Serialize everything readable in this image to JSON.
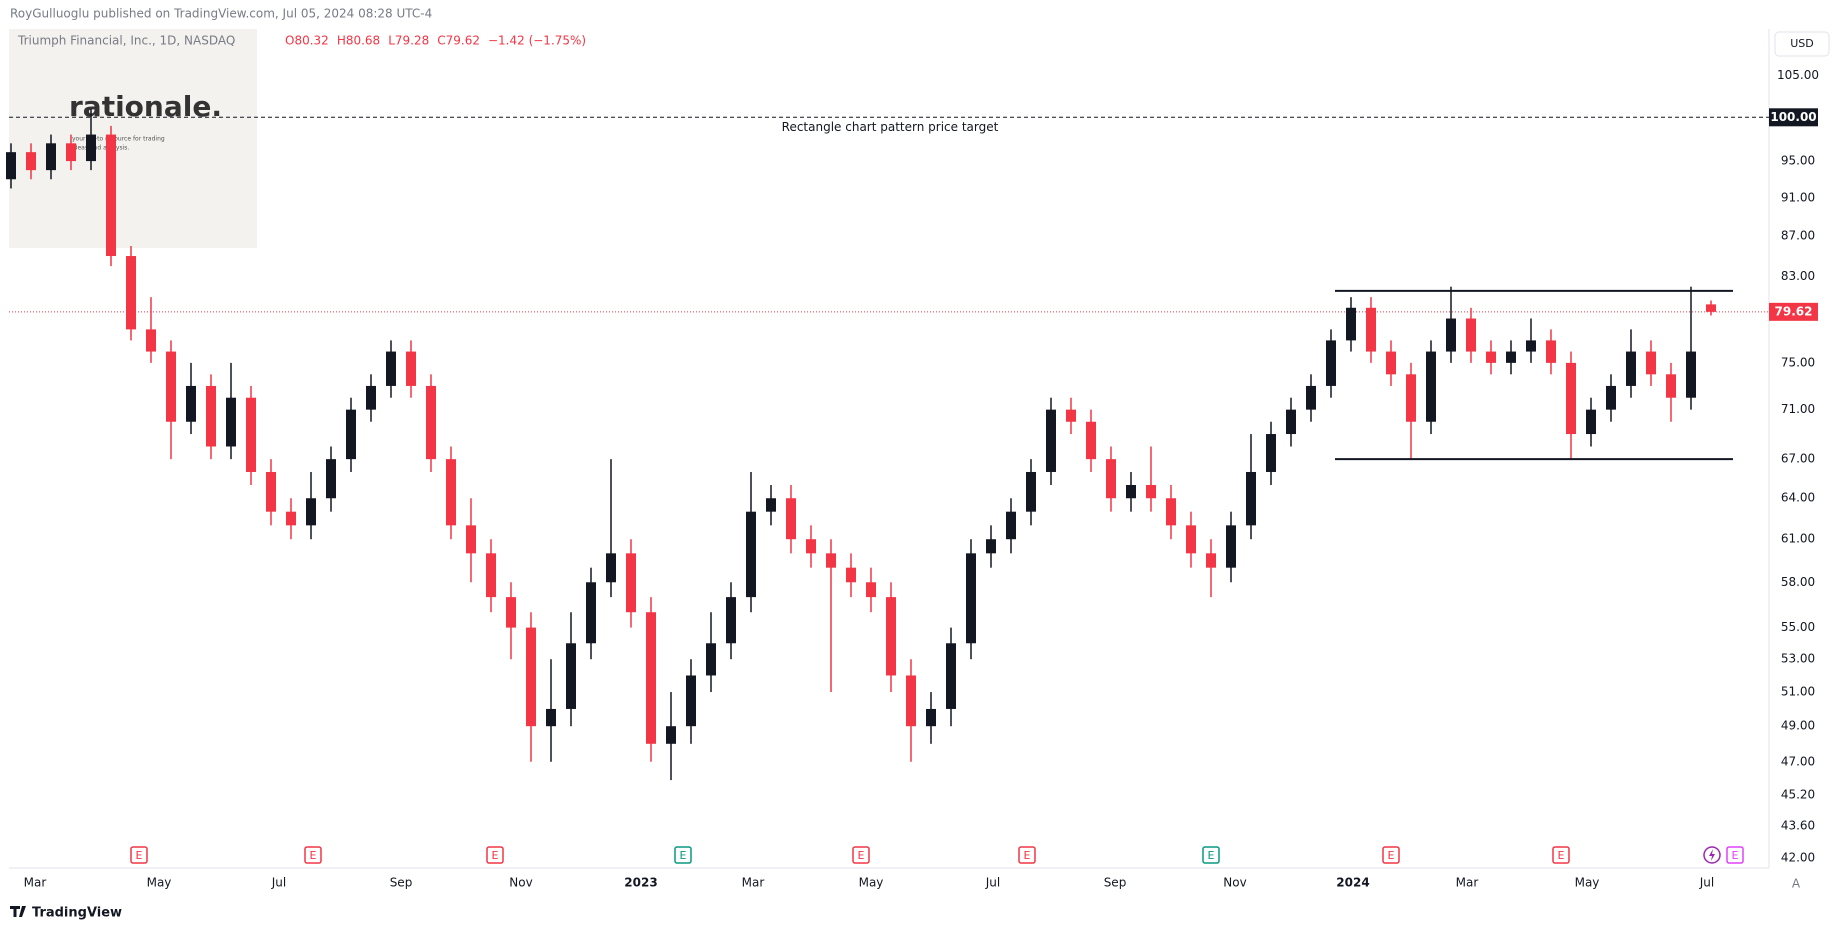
{
  "header": {
    "publisher": "RoyGulluoglu published on TradingView.com,  Jul 05, 2024 08:28 UTC-4",
    "symbol": "Triumph Financial, Inc., 1D, NASDAQ",
    "ohlc": [
      "O80.32",
      "H80.68",
      "L79.28",
      "C79.62"
    ],
    "change": "−1.42 (−1.75%)",
    "currency": "USD"
  },
  "watermark": {
    "brand": "rationale.",
    "tagline": [
      "your go-to resource for trading",
      "ideas and analysis."
    ]
  },
  "footer": {
    "brand": "TradingView",
    "auto": "A"
  },
  "chart_data": {
    "type": "candlestick",
    "log_scale": true,
    "grid": false,
    "up_color": "#131722",
    "down_color": "#f23645",
    "open": [
      93,
      96,
      94,
      97,
      95,
      98,
      85,
      78,
      76,
      70,
      73,
      68,
      72,
      66,
      63,
      62,
      64,
      67,
      71,
      73,
      76,
      73,
      67,
      62,
      60,
      57,
      55,
      49,
      50,
      54,
      58,
      60,
      56,
      48,
      49,
      52,
      54,
      57,
      63,
      64,
      61,
      60,
      59,
      58,
      57,
      52,
      49,
      50,
      54,
      60,
      61,
      63,
      66,
      71,
      70,
      67,
      64,
      65,
      64,
      62,
      60,
      59,
      62,
      66,
      69,
      71,
      73,
      77,
      80,
      76,
      74,
      70,
      76,
      79,
      76,
      75,
      76,
      77,
      75,
      69,
      71,
      73,
      76,
      74,
      72,
      80.32
    ],
    "high": [
      97,
      97,
      98,
      98,
      101,
      99,
      86,
      81,
      77,
      75,
      74,
      75,
      73,
      67,
      64,
      66,
      68,
      72,
      74,
      77,
      77,
      74,
      68,
      64,
      61,
      58,
      56,
      53,
      56,
      59,
      67,
      61,
      57,
      51,
      53,
      56,
      58,
      66,
      65,
      65,
      62,
      61,
      60,
      59,
      58,
      53,
      51,
      55,
      61,
      62,
      64,
      67,
      72,
      72,
      71,
      68,
      66,
      68,
      65,
      63,
      61,
      63,
      69,
      70,
      72,
      74,
      78,
      81,
      81,
      77,
      75,
      77,
      82,
      80,
      77,
      77,
      79,
      78,
      76,
      72,
      74,
      78,
      77,
      75,
      82,
      80.68
    ],
    "low": [
      92,
      93,
      93,
      94,
      94,
      84,
      77,
      75,
      67,
      69,
      67,
      67,
      65,
      62,
      61,
      61,
      63,
      66,
      70,
      72,
      72,
      66,
      61,
      58,
      56,
      53,
      47,
      47,
      49,
      53,
      57,
      55,
      47,
      46,
      48,
      51,
      53,
      56,
      62,
      60,
      59,
      51,
      57,
      56,
      51,
      47,
      48,
      49,
      53,
      59,
      60,
      62,
      65,
      69,
      66,
      63,
      63,
      63,
      61,
      59,
      57,
      58,
      61,
      65,
      68,
      70,
      72,
      76,
      75,
      73,
      67,
      69,
      75,
      75,
      74,
      74,
      75,
      74,
      67,
      68,
      70,
      72,
      73,
      70,
      71,
      79.28
    ],
    "close": [
      96,
      94,
      97,
      95,
      98,
      85,
      78,
      76,
      70,
      73,
      68,
      72,
      66,
      63,
      62,
      64,
      67,
      71,
      73,
      76,
      73,
      67,
      62,
      60,
      57,
      55,
      49,
      50,
      54,
      58,
      60,
      56,
      48,
      49,
      52,
      54,
      57,
      63,
      64,
      61,
      60,
      59,
      58,
      57,
      52,
      49,
      50,
      54,
      60,
      61,
      63,
      66,
      71,
      70,
      67,
      64,
      65,
      64,
      62,
      60,
      59,
      62,
      66,
      69,
      71,
      73,
      77,
      80,
      76,
      74,
      70,
      76,
      79,
      76,
      75,
      76,
      77,
      75,
      69,
      71,
      73,
      76,
      74,
      72,
      76,
      79.62
    ],
    "xlim": [
      -0.1,
      87.9
    ],
    "xticks": [
      {
        "value": 1.2,
        "label": "Mar"
      },
      {
        "value": 7.4,
        "label": "May"
      },
      {
        "value": 13.4,
        "label": "Jul"
      },
      {
        "value": 19.5,
        "label": "Sep"
      },
      {
        "value": 25.5,
        "label": "Nov"
      },
      {
        "value": 31.5,
        "label": "2023"
      },
      {
        "value": 37.1,
        "label": "Mar"
      },
      {
        "value": 43.0,
        "label": "May"
      },
      {
        "value": 49.1,
        "label": "Jul"
      },
      {
        "value": 55.2,
        "label": "Sep"
      },
      {
        "value": 61.2,
        "label": "Nov"
      },
      {
        "value": 67.1,
        "label": "2024"
      },
      {
        "value": 72.8,
        "label": "Mar"
      },
      {
        "value": 78.8,
        "label": "May"
      },
      {
        "value": 84.8,
        "label": "Jul"
      }
    ],
    "ylim": [
      41.5,
      110.9
    ],
    "yticks": [
      {
        "value": 105,
        "label": "105.00"
      },
      {
        "value": 95,
        "label": "95.00"
      },
      {
        "value": 91,
        "label": "91.00"
      },
      {
        "value": 87,
        "label": "87.00"
      },
      {
        "value": 83,
        "label": "83.00"
      },
      {
        "value": 75,
        "label": "75.00"
      },
      {
        "value": 71,
        "label": "71.00"
      },
      {
        "value": 67,
        "label": "67.00"
      },
      {
        "value": 64,
        "label": "64.00"
      },
      {
        "value": 61,
        "label": "61.00"
      },
      {
        "value": 58,
        "label": "58.00"
      },
      {
        "value": 55,
        "label": "55.00"
      },
      {
        "value": 53,
        "label": "53.00"
      },
      {
        "value": 51,
        "label": "51.00"
      },
      {
        "value": 49,
        "label": "49.00"
      },
      {
        "value": 47,
        "label": "47.00"
      },
      {
        "value": 45.2,
        "label": "45.20"
      },
      {
        "value": 43.6,
        "label": "43.60"
      },
      {
        "value": 42,
        "label": "42.00"
      }
    ],
    "last_price": 79.62,
    "target": {
      "value": 100,
      "label": "100.00",
      "text": "Rectangle chart pattern price target"
    },
    "rectangle": {
      "top": 81.6,
      "bottom": 67,
      "x": [
        66.2,
        86.1
      ]
    },
    "events": [
      {
        "x": 6.4,
        "label": "E",
        "color": "#f23645"
      },
      {
        "x": 15.1,
        "label": "E",
        "color": "#f23645"
      },
      {
        "x": 24.2,
        "label": "E",
        "color": "#f23645"
      },
      {
        "x": 33.6,
        "label": "E",
        "color": "#089981"
      },
      {
        "x": 42.5,
        "label": "E",
        "color": "#f23645"
      },
      {
        "x": 50.8,
        "label": "E",
        "color": "#f23645"
      },
      {
        "x": 60.0,
        "label": "E",
        "color": "#089981"
      },
      {
        "x": 69.0,
        "label": "E",
        "color": "#f23645"
      },
      {
        "x": 77.5,
        "label": "E",
        "color": "#f23645"
      },
      {
        "x": 86.2,
        "label": "E",
        "color": "#e040fb"
      }
    ]
  }
}
